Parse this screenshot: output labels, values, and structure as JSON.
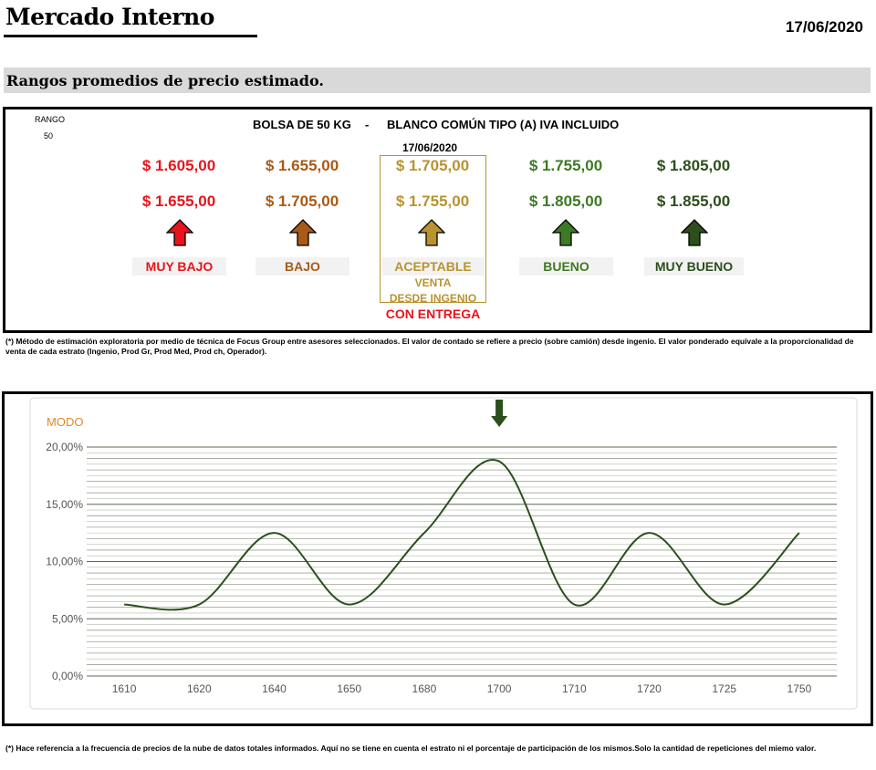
{
  "header": {
    "title": "Mercado Interno",
    "date": "17/06/2020"
  },
  "subtitle": "Rangos promedios de precio estimado.",
  "panel": {
    "rango_label": "RANGO",
    "rango_value": "50",
    "bolsa": "BOLSA DE 50 KG",
    "dash": "-",
    "tipo": "BLANCO COMÚN TIPO (A) IVA INCLUIDO",
    "date": "17/06/2020",
    "ranges": [
      {
        "label": "MUY BAJO",
        "low": "$ 1.605,00",
        "high": "$ 1.655,00",
        "color": "#e8141b",
        "arrow": "arrow-up-icon"
      },
      {
        "label": "BAJO",
        "low": "$ 1.655,00",
        "high": "$ 1.705,00",
        "color": "#a85a16",
        "arrow": "arrow-up-icon"
      },
      {
        "label": "ACEPTABLE",
        "low": "$ 1.705,00",
        "high": "$ 1.755,00",
        "color": "#b8932f",
        "arrow": "arrow-up-icon"
      },
      {
        "label": "BUENO",
        "low": "$ 1.755,00",
        "high": "$ 1.805,00",
        "color": "#3e7a23",
        "arrow": "arrow-up-icon"
      },
      {
        "label": "MUY BUENO",
        "low": "$ 1.805,00",
        "high": "$ 1.855,00",
        "color": "#2c4f1c",
        "arrow": "arrow-up-icon"
      }
    ],
    "venta_line1": "VENTA",
    "venta_line2": "DESDE INGENIO",
    "con_entrega": "CON ENTREGA"
  },
  "note1": "(*) Método de estimación exploratoria por medio de técnica de Focus Group entre asesores seleccionados. El valor de contado se refiere a precio (sobre camión) desde ingenio. El valor ponderado equivale a la proporcionalidad de venta de cada estrato (Ingenio, Prod Gr, Prod Med, Prod ch, Operador).",
  "chart_data": {
    "type": "line",
    "title": "MODO",
    "categories": [
      "1610",
      "1620",
      "1640",
      "1650",
      "1680",
      "1700",
      "1710",
      "1720",
      "1725",
      "1750"
    ],
    "series": [
      {
        "values": [
          6.25,
          6.25,
          12.5,
          6.25,
          12.5,
          18.75,
          6.25,
          12.5,
          6.25,
          12.5
        ]
      }
    ],
    "ytick_labels": [
      "0,00%",
      "5,00%",
      "10,00%",
      "15,00%",
      "20,00%"
    ],
    "ylim": [
      0,
      20
    ],
    "y_unit": "percent",
    "grid": true,
    "smooth": true,
    "line_color": "#2c4f1c",
    "title_color": "#e08a2c",
    "marker": {
      "category": "1700",
      "icon": "arrow-down-icon",
      "color": "#2c4f1c"
    }
  },
  "note2": "(*) Hace referencia a la frecuencia de precios de la nube de datos totales informados. Aquí no se tiene en cuenta el estrato ni el porcentaje de participación de los mismos.Solo la cantidad de repeticiones del miemo valor."
}
